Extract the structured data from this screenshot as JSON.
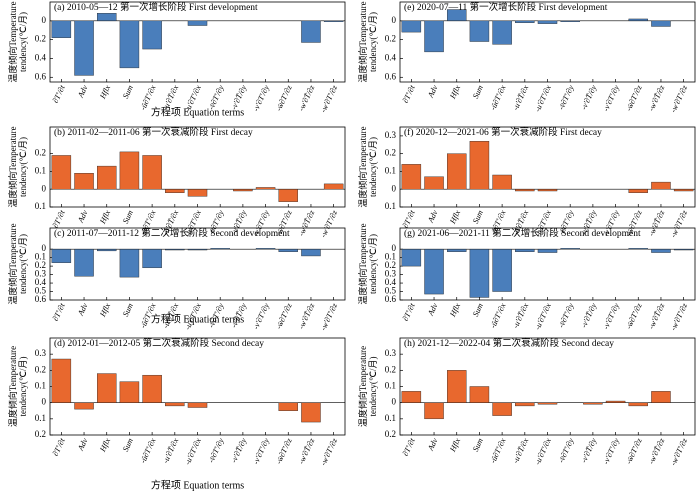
{
  "chart_data": [
    {
      "type": "bar",
      "title": "(a) 2010-05—12 第一次增长阶段 First development",
      "xlabel": "方程项 Equation terms",
      "ylabel": [
        "温度倾向Temperature",
        "tendency(℃/月)"
      ],
      "color": "#4a7ebb",
      "categories": [
        "∂T'/∂t",
        "Adv",
        "Hflx",
        "Sum",
        "-ū∂T'/∂x",
        "-u'∂T̄/∂x",
        "-u'∂T'/∂x",
        "-v̄∂T'/∂y",
        "-v'∂T̄/∂y",
        "-v'∂T'/∂y",
        "-w̄∂T'/∂z",
        "-w'∂T̄/∂z",
        "-w'∂T'/∂z"
      ],
      "values": [
        -0.18,
        -0.58,
        0.08,
        -0.5,
        -0.3,
        0,
        -0.05,
        0,
        0,
        0,
        0,
        -0.23,
        -0.01
      ],
      "ylim": [
        -0.65,
        0.2
      ],
      "yticks": [
        0,
        {
          "value": -0.2,
          "label": "0.2"
        },
        {
          "value": -0.4,
          "label": "0.4"
        },
        {
          "value": -0.6,
          "label": "0.6"
        }
      ]
    },
    {
      "type": "bar",
      "title": "(b) 2011-02—2011-06 第一次衰减阶段 First decay",
      "ylabel": [
        "温度倾向Temperature",
        "tendency(℃/月)"
      ],
      "color": "#e8682e",
      "categories": [
        "∂T'/∂t",
        "Adv",
        "Hflx",
        "Sum",
        "-ū∂T'/∂x",
        "-u'∂T̄/∂x",
        "-u'∂T'/∂x",
        "-v̄∂T'/∂y",
        "-v'∂T̄/∂y",
        "-v'∂T'/∂y",
        "-w̄∂T'/∂z",
        "-w'∂T̄/∂z",
        "-w'∂T'/∂z"
      ],
      "values": [
        0.19,
        0.09,
        0.13,
        0.21,
        0.19,
        -0.02,
        -0.04,
        0,
        -0.01,
        0.01,
        -0.07,
        0,
        0.03
      ],
      "ylim": [
        -0.1,
        0.35
      ],
      "yticks": [
        0.2,
        0.1,
        0,
        {
          "value": -0.1,
          "label": "0.1"
        }
      ]
    },
    {
      "type": "bar",
      "title": "(c) 2011-07—2011-12 第二次增长阶段 Second development",
      "xlabel": "方程项 Equation terms",
      "ylabel": [
        "温度倾向Temperature",
        "tendency(℃/月)"
      ],
      "color": "#4a7ebb",
      "categories": [
        "∂T'/∂t",
        "Adv",
        "Hflx",
        "Sum",
        "-ū∂T'/∂x",
        "-u'∂T̄/∂x",
        "-u'∂T'/∂x",
        "-v̄∂T'/∂y",
        "-v'∂T̄/∂y",
        "-v'∂T'/∂y",
        "-w̄∂T'/∂z",
        "-w'∂T̄/∂z",
        "-w'∂T'/∂z"
      ],
      "values": [
        -0.16,
        -0.32,
        -0.02,
        -0.33,
        -0.22,
        -0.01,
        -0.01,
        0.01,
        0,
        0.01,
        -0.03,
        -0.08,
        0
      ],
      "ylim": [
        -0.6,
        0.25
      ],
      "yticks": [
        0,
        {
          "value": -0.1,
          "label": "0.1"
        },
        {
          "value": -0.2,
          "label": "0.2"
        },
        {
          "value": -0.3,
          "label": "0.3"
        },
        {
          "value": -0.4,
          "label": "0.4"
        },
        {
          "value": -0.5,
          "label": "0.5"
        },
        {
          "value": -0.6,
          "label": "0.6"
        }
      ]
    },
    {
      "type": "bar",
      "title": "(d) 2012-01—2012-05 第二次衰减阶段 Second decay",
      "xlabel": "方程项 Equation terms",
      "ylabel": [
        "温度倾向Temperature",
        "tendency(℃/月)"
      ],
      "color": "#e8682e",
      "categories": [
        "∂T'/∂t",
        "Adv",
        "Hflx",
        "Sum",
        "-ū∂T'/∂x",
        "-u'∂T̄/∂x",
        "-u'∂T'/∂x",
        "-v̄∂T'/∂y",
        "-v'∂T̄/∂y",
        "-v'∂T'/∂y",
        "-w̄∂T'/∂z",
        "-w'∂T̄/∂z",
        "-w'∂T'/∂z"
      ],
      "values": [
        0.27,
        -0.04,
        0.18,
        0.13,
        0.17,
        -0.02,
        -0.03,
        0,
        0,
        0,
        -0.05,
        -0.12,
        0
      ],
      "ylim": [
        -0.2,
        0.4
      ],
      "yticks": [
        0.3,
        0.2,
        0.1,
        0,
        {
          "value": -0.1,
          "label": "0.1"
        },
        {
          "value": -0.2,
          "label": "0.2"
        }
      ]
    },
    {
      "type": "bar",
      "title": "(e) 2020-07—11 第一次增长阶段 First development",
      "ylabel": [
        "温度倾向Temperature",
        "tendency(℃/月)"
      ],
      "color": "#4a7ebb",
      "categories": [
        "∂T'/∂t",
        "Adv",
        "Hflx",
        "Sum",
        "-ū∂T'/∂x",
        "-u'∂T̄/∂x",
        "-u'∂T'/∂x",
        "-v̄∂T'/∂y",
        "-v'∂T̄/∂y",
        "-v'∂T'/∂y",
        "-w̄∂T'/∂z",
        "-w'∂T̄/∂z",
        "-w'∂T'/∂z"
      ],
      "values": [
        -0.12,
        -0.33,
        0.12,
        -0.22,
        -0.25,
        -0.02,
        -0.03,
        -0.01,
        0,
        0,
        0.02,
        -0.06,
        0
      ],
      "ylim": [
        -0.65,
        0.2
      ],
      "yticks": [
        0,
        {
          "value": -0.2,
          "label": "0.2"
        },
        {
          "value": -0.4,
          "label": "0.4"
        },
        {
          "value": -0.6,
          "label": "0.6"
        }
      ]
    },
    {
      "type": "bar",
      "title": "(f) 2020-12—2021-06 第一次衰减阶段 First decay",
      "ylabel": [
        "温度倾向Temperature",
        "tendency(℃/月)"
      ],
      "color": "#e8682e",
      "categories": [
        "∂T'/∂t",
        "Adv",
        "Hflx",
        "Sum",
        "-ū∂T'/∂x",
        "-u'∂T̄/∂x",
        "-u'∂T'/∂x",
        "-v̄∂T'/∂y",
        "-v'∂T̄/∂y",
        "-v'∂T'/∂y",
        "-w̄∂T'/∂z",
        "-w'∂T̄/∂z",
        "-w'∂T'/∂z"
      ],
      "values": [
        0.14,
        0.07,
        0.2,
        0.27,
        0.08,
        -0.01,
        -0.01,
        0,
        0,
        0,
        -0.02,
        0.04,
        -0.01
      ],
      "ylim": [
        -0.1,
        0.35
      ],
      "yticks": [
        0.3,
        0.2,
        0.1,
        0,
        {
          "value": -0.1,
          "label": "0.1"
        }
      ]
    },
    {
      "type": "bar",
      "title": "(g) 2021-06—2021-11 第二次增长阶段 Second development",
      "ylabel": [
        "温度倾向Temperature",
        "tendency(℃/月)"
      ],
      "color": "#4a7ebb",
      "categories": [
        "∂T'/∂t",
        "Adv",
        "Hflx",
        "Sum",
        "-ū∂T'/∂x",
        "-u'∂T̄/∂x",
        "-u'∂T'/∂x",
        "-v̄∂T'/∂y",
        "-v'∂T̄/∂y",
        "-v'∂T'/∂y",
        "-w̄∂T'/∂z",
        "-w'∂T̄/∂z",
        "-w'∂T'/∂z"
      ],
      "values": [
        -0.2,
        -0.53,
        -0.03,
        -0.57,
        -0.5,
        -0.03,
        -0.04,
        0.01,
        0,
        0,
        0.01,
        -0.04,
        -0.01
      ],
      "ylim": [
        -0.6,
        0.25
      ],
      "yticks": [
        0,
        {
          "value": -0.1,
          "label": "0.1"
        },
        {
          "value": -0.2,
          "label": "0.2"
        },
        {
          "value": -0.3,
          "label": "0.3"
        },
        {
          "value": -0.4,
          "label": "0.4"
        },
        {
          "value": -0.5,
          "label": "0.5"
        },
        {
          "value": -0.6,
          "label": "0.6"
        }
      ]
    },
    {
      "type": "bar",
      "title": "(h) 2021-12—2022-04 第二次衰减阶段 Second decay",
      "ylabel": [
        "温度倾向Temperature",
        "tendency(℃/月)"
      ],
      "color": "#e8682e",
      "categories": [
        "∂T'/∂t",
        "Adv",
        "Hflx",
        "Sum",
        "-ū∂T'/∂x",
        "-u'∂T̄/∂x",
        "-u'∂T'/∂x",
        "-v̄∂T'/∂y",
        "-v'∂T̄/∂y",
        "-v'∂T'/∂y",
        "-w̄∂T'/∂z",
        "-w'∂T̄/∂z",
        "-w'∂T'/∂z"
      ],
      "values": [
        0.07,
        -0.1,
        0.2,
        0.1,
        -0.08,
        -0.02,
        -0.01,
        0,
        -0.01,
        0.01,
        -0.02,
        0.07,
        0
      ],
      "ylim": [
        -0.2,
        0.4
      ],
      "yticks": [
        0.3,
        0.2,
        0.1,
        0,
        {
          "value": -0.1,
          "label": "0.1"
        },
        {
          "value": -0.2,
          "label": "0.2"
        }
      ]
    }
  ]
}
